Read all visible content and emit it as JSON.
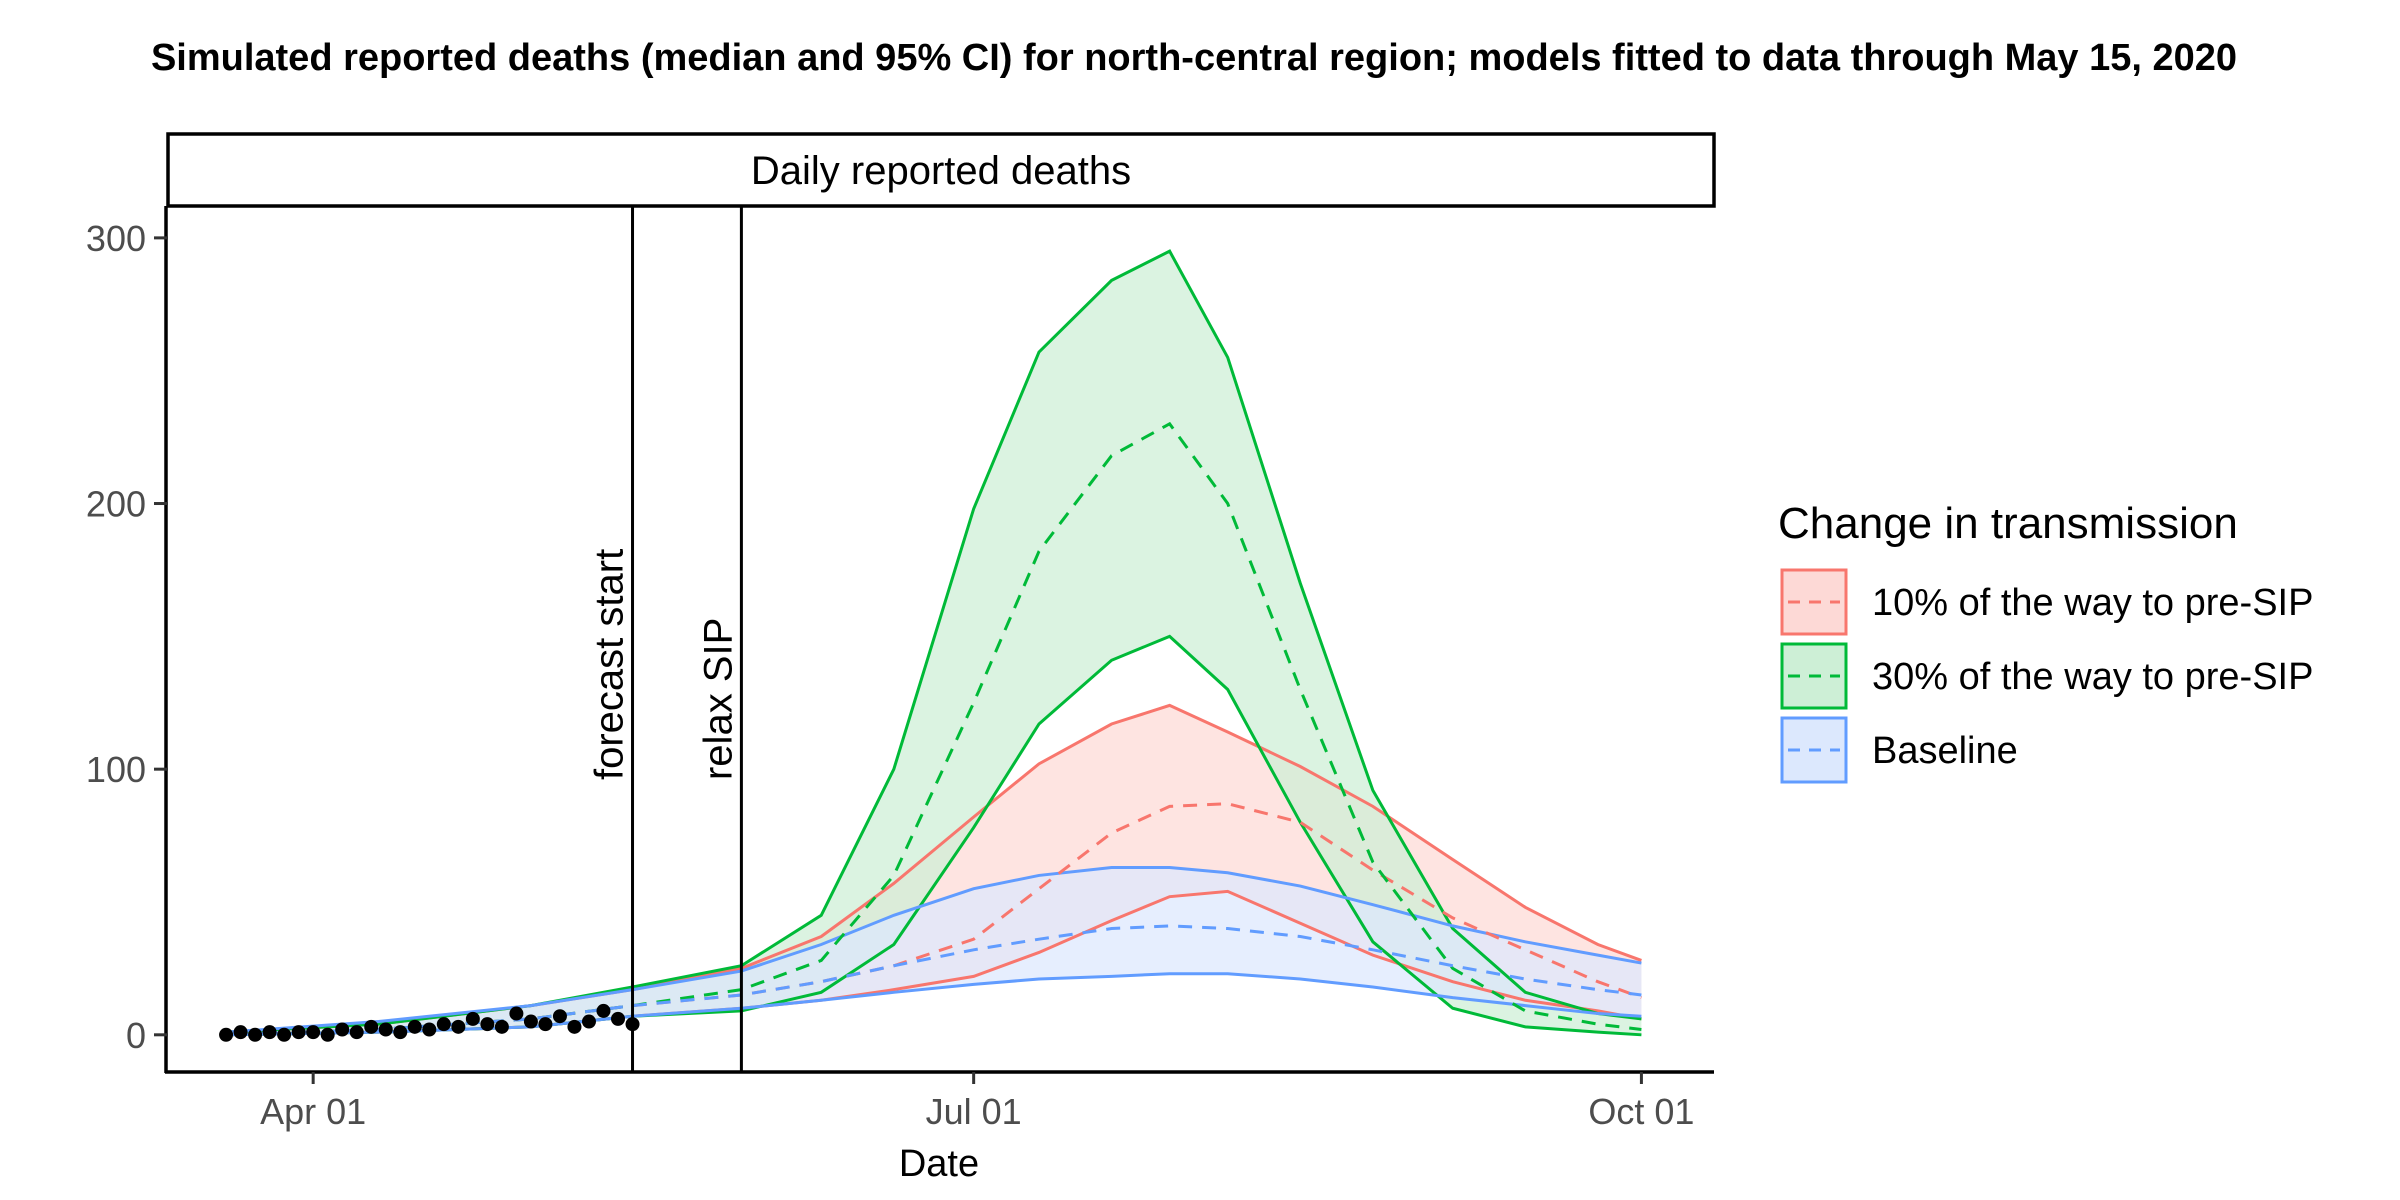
{
  "chart_data": {
    "type": "line",
    "title": "Simulated reported deaths (median and 95% CI) for north-central region; models fitted to data through May 15, 2020",
    "panel_label": "Daily reported deaths",
    "xlabel": "Date",
    "ylabel": "",
    "x_ticks": [
      "Apr 01",
      "Jul 01",
      "Oct 01"
    ],
    "x_tick_dates": [
      "2020-04-01",
      "2020-07-01",
      "2020-10-01"
    ],
    "xlim": [
      "2020-03-12",
      "2020-10-11"
    ],
    "y_ticks": [
      0,
      100,
      200,
      300
    ],
    "ylim": [
      -14,
      312
    ],
    "grid": false,
    "legend": {
      "title": "Change in transmission",
      "position": "right",
      "entries": [
        "10% of the way to pre-SIP",
        "30% of the way to pre-SIP",
        "Baseline"
      ]
    },
    "vertical_lines": [
      {
        "label": "forecast start",
        "date": "2020-05-15"
      },
      {
        "label": "relax SIP",
        "date": "2020-05-30"
      }
    ],
    "series": [
      {
        "name": "10% of the way to pre-SIP",
        "color": "#F8766D",
        "fill": "#FDD9D6",
        "dates": [
          "2020-03-20",
          "2020-04-10",
          "2020-05-01",
          "2020-05-15",
          "2020-05-30",
          "2020-06-10",
          "2020-06-20",
          "2020-07-01",
          "2020-07-10",
          "2020-07-20",
          "2020-07-28",
          "2020-08-05",
          "2020-08-15",
          "2020-08-25",
          "2020-09-05",
          "2020-09-15",
          "2020-09-25",
          "2020-10-01"
        ],
        "median": [
          0,
          2,
          6,
          11,
          15,
          20,
          26,
          36,
          55,
          76,
          86,
          87,
          80,
          62,
          44,
          32,
          20,
          14
        ],
        "upper": [
          1,
          4,
          11,
          17,
          25,
          37,
          57,
          82,
          102,
          117,
          124,
          114,
          101,
          86,
          66,
          48,
          34,
          28
        ],
        "lower": [
          0,
          1,
          3,
          7,
          10,
          13,
          17,
          22,
          31,
          43,
          52,
          54,
          42,
          30,
          20,
          13,
          9,
          6
        ]
      },
      {
        "name": "30% of the way to pre-SIP",
        "color": "#00BA38",
        "fill": "#CDEFD6",
        "dates": [
          "2020-03-20",
          "2020-04-10",
          "2020-05-01",
          "2020-05-15",
          "2020-05-30",
          "2020-06-10",
          "2020-06-20",
          "2020-07-01",
          "2020-07-10",
          "2020-07-20",
          "2020-07-28",
          "2020-08-05",
          "2020-08-15",
          "2020-08-25",
          "2020-09-05",
          "2020-09-15",
          "2020-09-25",
          "2020-10-01"
        ],
        "median": [
          0,
          2,
          6,
          11,
          17,
          28,
          60,
          125,
          182,
          218,
          230,
          200,
          130,
          65,
          25,
          9,
          4,
          2
        ],
        "upper": [
          1,
          4,
          11,
          18,
          26,
          45,
          100,
          198,
          257,
          284,
          295,
          255,
          170,
          92,
          40,
          16,
          8,
          6
        ],
        "lower": [
          0,
          1,
          3,
          7,
          9,
          16,
          34,
          78,
          117,
          141,
          150,
          130,
          80,
          35,
          10,
          3,
          1,
          0
        ]
      },
      {
        "name": "Baseline",
        "color": "#619CFF",
        "fill": "#DCE8FD",
        "dates": [
          "2020-03-20",
          "2020-04-10",
          "2020-05-01",
          "2020-05-15",
          "2020-05-30",
          "2020-06-10",
          "2020-06-20",
          "2020-07-01",
          "2020-07-10",
          "2020-07-20",
          "2020-07-28",
          "2020-08-05",
          "2020-08-15",
          "2020-08-25",
          "2020-09-05",
          "2020-09-15",
          "2020-09-25",
          "2020-10-01"
        ],
        "median": [
          0,
          2,
          6,
          11,
          15,
          20,
          26,
          32,
          36,
          40,
          41,
          40,
          37,
          32,
          26,
          21,
          17,
          15
        ],
        "upper": [
          1,
          5,
          11,
          17,
          24,
          34,
          45,
          55,
          60,
          63,
          63,
          61,
          56,
          49,
          41,
          35,
          30,
          27
        ],
        "lower": [
          0,
          1,
          3,
          7,
          10,
          13,
          16,
          19,
          21,
          22,
          23,
          23,
          21,
          18,
          14,
          11,
          8,
          7
        ]
      }
    ],
    "observed": {
      "name": "Observed deaths",
      "color": "#000000",
      "dates": [
        "2020-03-20",
        "2020-03-22",
        "2020-03-24",
        "2020-03-26",
        "2020-03-28",
        "2020-03-30",
        "2020-04-01",
        "2020-04-03",
        "2020-04-05",
        "2020-04-07",
        "2020-04-09",
        "2020-04-11",
        "2020-04-13",
        "2020-04-15",
        "2020-04-17",
        "2020-04-19",
        "2020-04-21",
        "2020-04-23",
        "2020-04-25",
        "2020-04-27",
        "2020-04-29",
        "2020-05-01",
        "2020-05-03",
        "2020-05-05",
        "2020-05-07",
        "2020-05-09",
        "2020-05-11",
        "2020-05-13",
        "2020-05-15"
      ],
      "values": [
        0,
        1,
        0,
        1,
        0,
        1,
        1,
        0,
        2,
        1,
        3,
        2,
        1,
        3,
        2,
        4,
        3,
        6,
        4,
        3,
        8,
        5,
        4,
        7,
        3,
        5,
        9,
        6,
        4
      ]
    }
  }
}
